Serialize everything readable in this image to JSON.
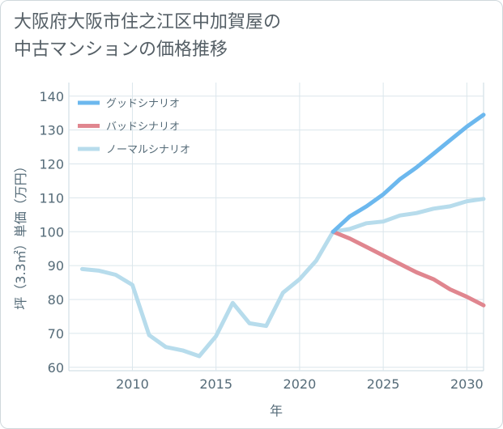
{
  "title": {
    "line1": "大阪府大阪市住之江区中加賀屋の",
    "line2": "中古マンションの価格推移"
  },
  "chart_data": {
    "type": "line",
    "xlabel": "年",
    "ylabel": "坪（3.3㎡）単価（万円）",
    "xlim": [
      2006.2,
      2031
    ],
    "ylim": [
      59,
      144
    ],
    "xticks": [
      2010,
      2015,
      2020,
      2025,
      2030
    ],
    "yticks": [
      60,
      70,
      80,
      90,
      100,
      110,
      120,
      130,
      140
    ],
    "grid": true,
    "legend_position": "top-left",
    "series": [
      {
        "name": "グッドシナリオ",
        "color": "#6cb8ee",
        "x": [
          2022,
          2023,
          2024,
          2025,
          2026,
          2027,
          2028,
          2029,
          2030,
          2031
        ],
        "y": [
          100,
          104.5,
          107.5,
          111,
          115.5,
          119,
          123,
          127,
          131,
          134.5
        ]
      },
      {
        "name": "バッドシナリオ",
        "color": "#e0868f",
        "x": [
          2022,
          2023,
          2024,
          2025,
          2026,
          2027,
          2028,
          2029,
          2030,
          2031
        ],
        "y": [
          100,
          98,
          95.5,
          93,
          90.5,
          88,
          86,
          83,
          80.8,
          78.3
        ]
      },
      {
        "name": "ノーマルシナリオ",
        "color": "#b7dcec",
        "x": [
          2007,
          2008,
          2009,
          2010,
          2011,
          2012,
          2013,
          2014,
          2015,
          2016,
          2017,
          2018,
          2019,
          2020,
          2021,
          2022,
          2023,
          2024,
          2025,
          2026,
          2027,
          2028,
          2029,
          2030,
          2031
        ],
        "y": [
          89,
          88.5,
          87.3,
          84.3,
          69.5,
          66,
          65,
          63.3,
          69.2,
          79,
          73,
          72.2,
          82,
          86,
          91.5,
          100,
          100.8,
          102.5,
          103,
          104.8,
          105.5,
          106.8,
          107.5,
          109,
          109.7
        ]
      }
    ]
  }
}
